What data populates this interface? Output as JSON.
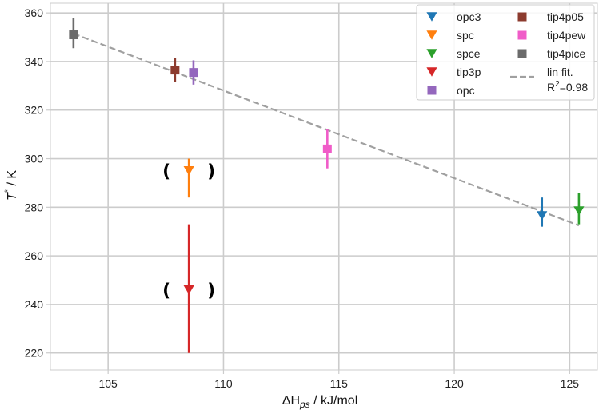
{
  "chart_data": {
    "type": "scatter",
    "xlabel": "ΔH",
    "xlabel_sub": "ps",
    "xlabel_unit": " / kJ/mol",
    "ylabel": "T",
    "ylabel_sup": "*",
    "ylabel_unit": " / K",
    "xlim": [
      102.5,
      126.2
    ],
    "ylim": [
      213,
      364
    ],
    "xticks": [
      105,
      110,
      115,
      120,
      125
    ],
    "yticks": [
      220,
      240,
      260,
      280,
      300,
      320,
      340,
      360
    ],
    "grid": true,
    "legend_position": "top-right",
    "series": [
      {
        "name": "opc3",
        "marker": "triangle-down",
        "color": "#1f77b4",
        "x": 123.8,
        "y": 276.5,
        "yerr_low": 272,
        "yerr_high": 284
      },
      {
        "name": "spc",
        "marker": "triangle-down",
        "color": "#ff7f0e",
        "x": 108.5,
        "y": 295,
        "yerr_low": 284,
        "yerr_high": 300,
        "annotation": "( )"
      },
      {
        "name": "spce",
        "marker": "triangle-down",
        "color": "#2ca02c",
        "x": 125.4,
        "y": 278.5,
        "yerr_low": 273,
        "yerr_high": 286
      },
      {
        "name": "tip3p",
        "marker": "triangle-down",
        "color": "#d62728",
        "x": 108.5,
        "y": 246,
        "yerr_low": 220,
        "yerr_high": 273,
        "annotation": "( )"
      },
      {
        "name": "opc",
        "marker": "square",
        "color": "#9467bd",
        "x": 108.7,
        "y": 335.5,
        "yerr_low": 330.5,
        "yerr_high": 340.5
      },
      {
        "name": "tip4p05",
        "marker": "square",
        "color": "#8c3b2e",
        "x": 107.9,
        "y": 336.5,
        "yerr_low": 331.5,
        "yerr_high": 341.5
      },
      {
        "name": "tip4pew",
        "marker": "square",
        "color": "#f05cc8",
        "x": 114.5,
        "y": 304,
        "yerr_low": 296,
        "yerr_high": 312
      },
      {
        "name": "tip4pice",
        "marker": "square",
        "color": "#6b6b6b",
        "x": 103.5,
        "y": 351,
        "yerr_low": 345.5,
        "yerr_high": 358
      }
    ],
    "fit": {
      "name": "lin fit.",
      "r2_text": "R",
      "r2_sup": "2",
      "r2_value": "=0.98",
      "x": [
        103.5,
        125.4
      ],
      "y": [
        351.5,
        272.5
      ],
      "color": "#a0a0a0",
      "style": "dashed"
    }
  }
}
